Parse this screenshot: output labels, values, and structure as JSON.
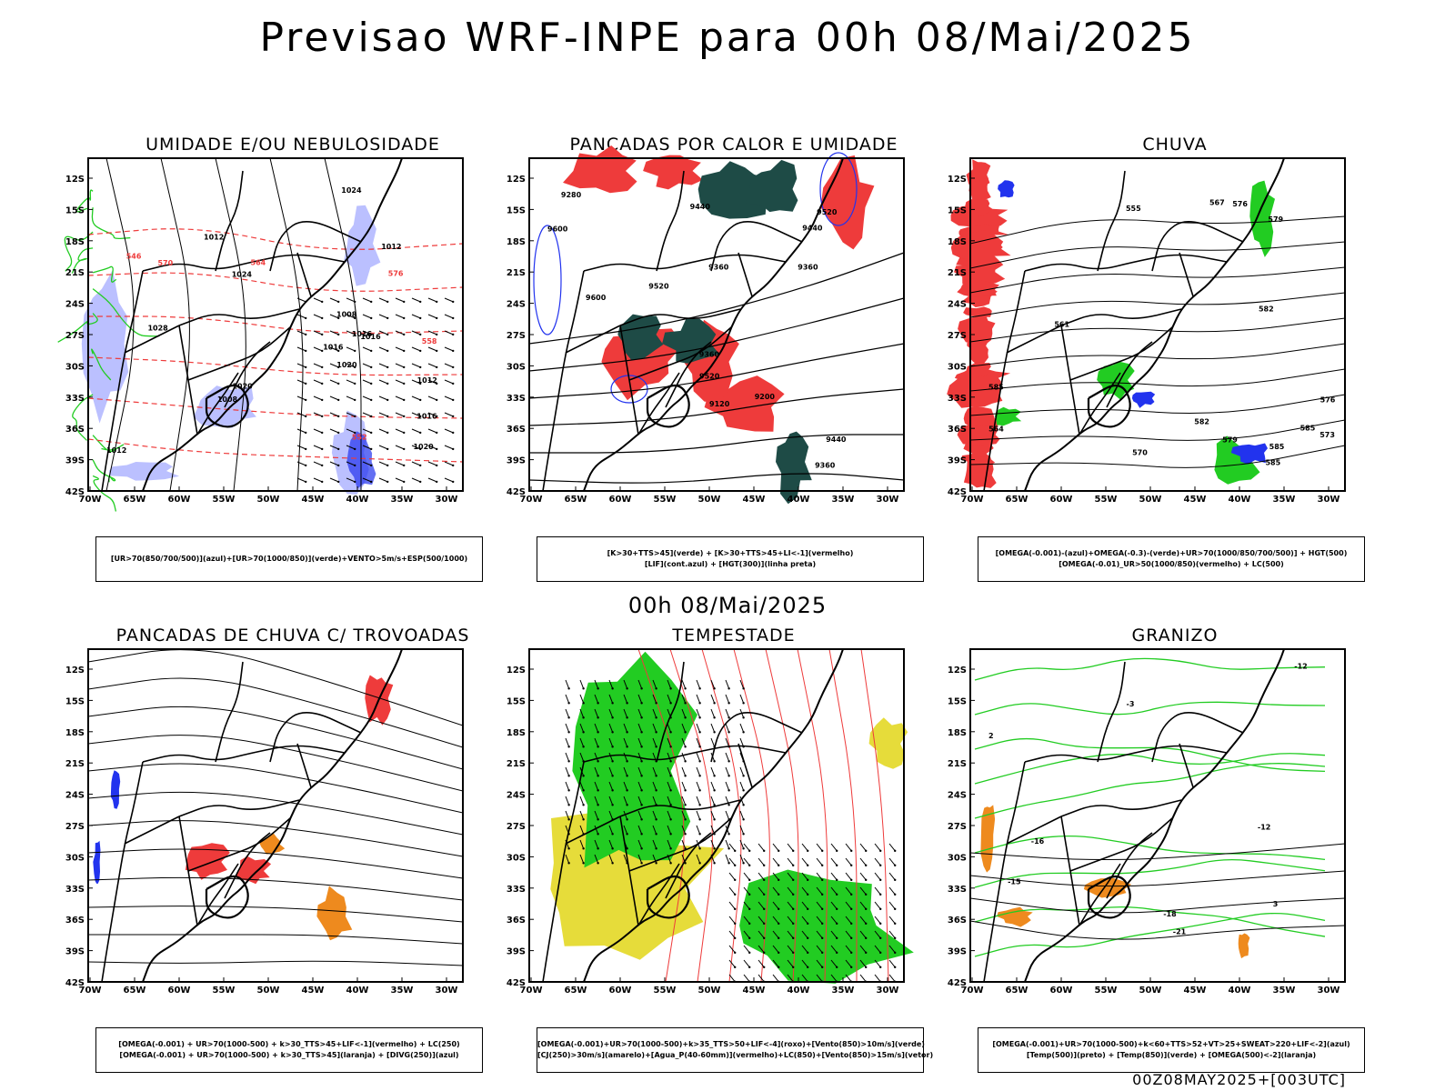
{
  "header": {
    "title": "Previsao WRF-INPE  para 00h 08/Mai/2025"
  },
  "middle_title": "00h 08/Mai/2025",
  "footer": "00Z08MAY2025+[003UTC]",
  "axes": {
    "lat_labels": [
      "12S",
      "15S",
      "18S",
      "21S",
      "24S",
      "27S",
      "30S",
      "33S",
      "36S",
      "39S",
      "42S"
    ],
    "lon_labels": [
      "70W",
      "65W",
      "60W",
      "55W",
      "50W",
      "45W",
      "40W",
      "35W",
      "30W"
    ]
  },
  "colors": {
    "red": "#ee3b3b",
    "green": "#22cc22",
    "blue": "#2233ee",
    "lightblue": "#aab0ff",
    "darkgreen": "#1e4b46",
    "yellow": "#e6dc3a",
    "orange": "#ee8a1e"
  },
  "panels": [
    {
      "title": "UMIDADE E/OU NEBULOSIDADE",
      "legend": [
        "[UR>70(850/700/500)](azul)+[UR>70(1000/850)](verde)+VENTO>5m/s+ESP(500/1000)"
      ],
      "contour_labels": [
        "1012",
        "1012",
        "1016",
        "1008",
        "1016",
        "1020",
        "1012",
        "1020",
        "1024",
        "1008",
        "1016",
        "1028",
        "1012",
        "1016",
        "1020",
        "1024",
        "576",
        "570",
        "564",
        "558",
        "552",
        "546"
      ]
    },
    {
      "title": "PANCADAS POR CALOR E UMIDADE",
      "legend": [
        "[K>30+TTS>45](verde) + [K>30+TTS>45+LI<-1](vermelho)",
        "[LIF](cont.azul) + [HGT(300)](linha preta)"
      ],
      "contour_labels": [
        "9600",
        "9520",
        "9360",
        "9440",
        "9600",
        "9520",
        "9360",
        "9120",
        "9280",
        "9360",
        "9440",
        "9520",
        "9200",
        "9440",
        "9360"
      ]
    },
    {
      "title": "CHUVA",
      "legend": [
        "[OMEGA(-0.001)-(azul)+OMEGA(-0.3)-(verde)+UR>70(1000/850/700/500)] + HGT(500)",
        "[OMEGA(-0.01)_UR>50(1000/850)(vermelho) + LC(500)"
      ],
      "contour_labels": [
        "585",
        "585",
        "585",
        "582",
        "579",
        "576",
        "582",
        "579",
        "576",
        "573",
        "570",
        "567",
        "564",
        "561",
        "555",
        "585"
      ]
    },
    {
      "title": "PANCADAS DE CHUVA C/ TROVOADAS",
      "legend": [
        "[OMEGA(-0.001) + UR>70(1000-500) + k>30_TTS>45+LIF<-1](vermelho) + LC(250)",
        "[OMEGA(-0.001) + UR>70(1000-500) + k>30_TTS>45](laranja) + [DIVG(250)](azul)"
      ],
      "contour_labels": []
    },
    {
      "title": "TEMPESTADE",
      "legend": [
        "[OMEGA(-0.001)+UR>70(1000-500)+k>35_TTS>50+LIF<-4](roxo)+[Vento(850)>10m/s](verde)",
        "[CJ(250)>30m/s](amarelo)+[Agua_P(40-60mm)](vermelho)+LC(850)+[Vento(850)>15m/s](vetor)"
      ],
      "contour_labels": []
    },
    {
      "title": "GRANIZO",
      "legend": [
        "[OMEGA(-0.001)+UR>70(1000-500)+k<60+TTS>52+VT>25+SWEAT>220+LIF<-2](azul)",
        "[Temp(500)](preto) + [Temp(850)](verde) + [OMEGA(500)<-2](laranja)"
      ],
      "contour_labels": [
        "2",
        "3",
        "-15",
        "-12",
        "-21",
        "-18",
        "-16",
        "-12",
        "-3"
      ]
    }
  ]
}
